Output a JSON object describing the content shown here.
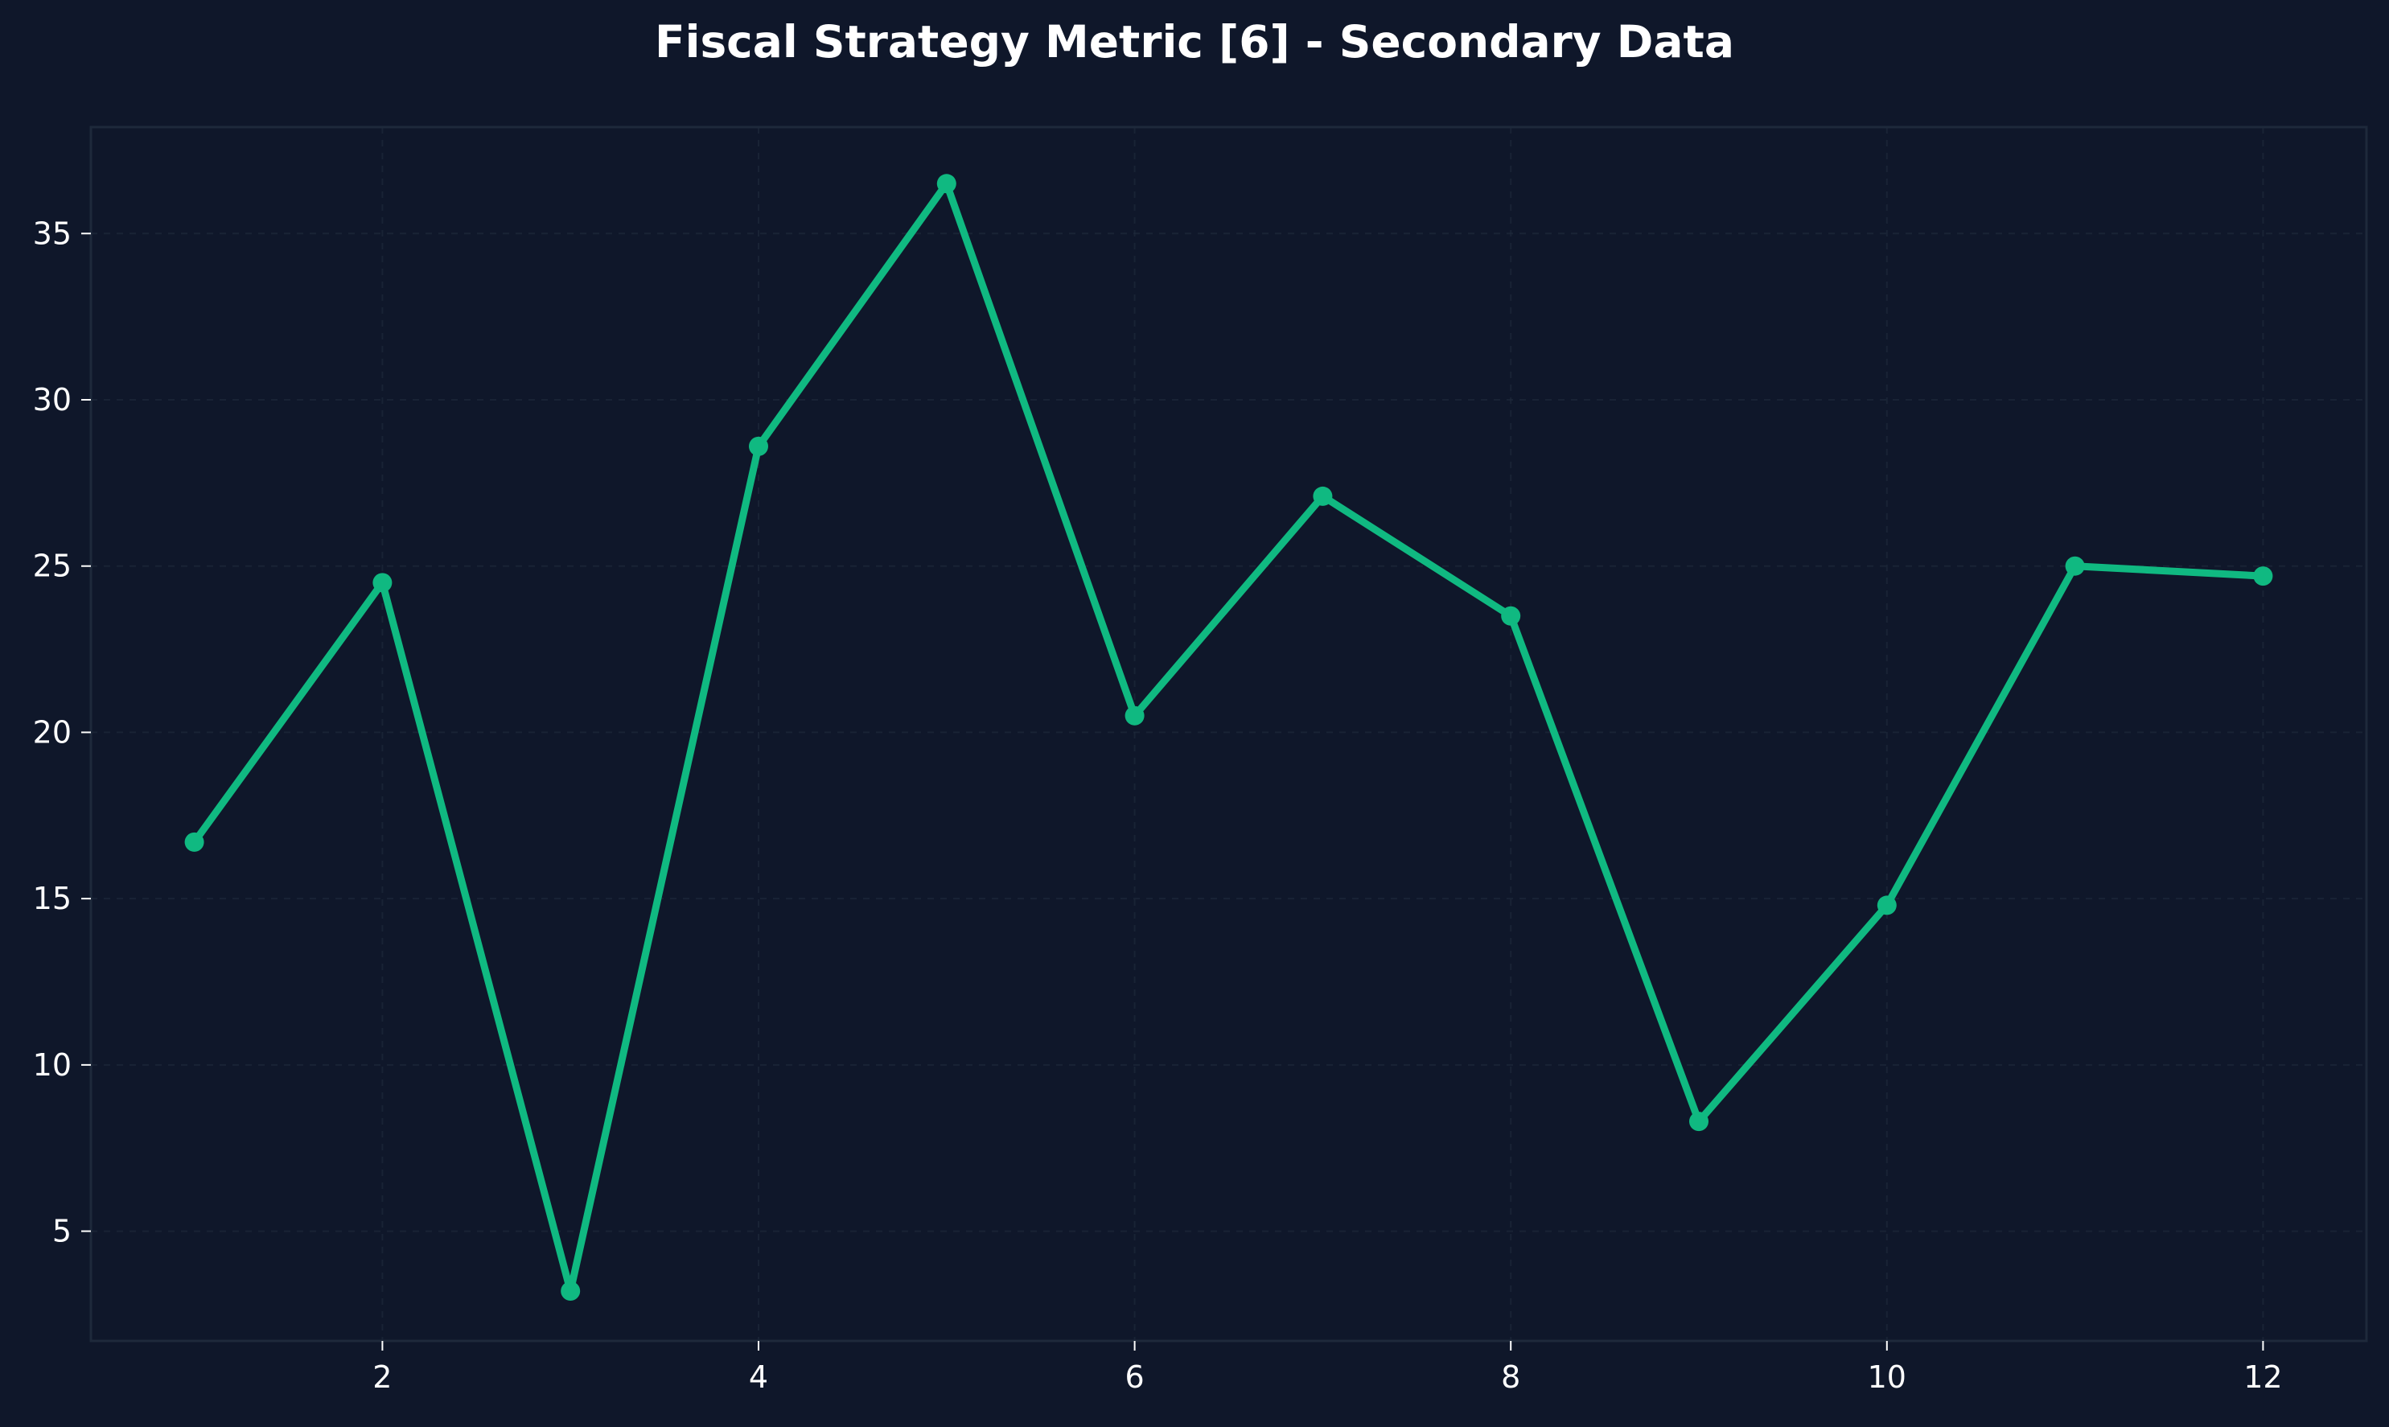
{
  "colors": {
    "background": "#0f172a",
    "plot_background": "#0f172a",
    "axis_frame": "#1e293b",
    "grid": "#1e293b",
    "text": "#ffffff",
    "series": "#10b981"
  },
  "chart_data": {
    "type": "line",
    "title": "Fiscal Strategy Metric [6] - Secondary Data",
    "xlabel": "",
    "ylabel": "",
    "x": [
      1,
      2,
      3,
      4,
      5,
      6,
      7,
      8,
      9,
      10,
      11,
      12
    ],
    "series": [
      {
        "values": [
          16.7,
          24.5,
          3.2,
          28.6,
          36.5,
          20.5,
          27.1,
          23.5,
          8.3,
          14.8,
          25.0,
          24.7
        ]
      }
    ],
    "xlim": [
      0.45,
      12.55
    ],
    "ylim": [
      1.7,
      38.2
    ],
    "xticks": [
      2,
      4,
      6,
      8,
      10,
      12
    ],
    "yticks": [
      5,
      10,
      15,
      20,
      25,
      30,
      35
    ],
    "grid": true,
    "grid_style": "dashed",
    "markers": true
  }
}
